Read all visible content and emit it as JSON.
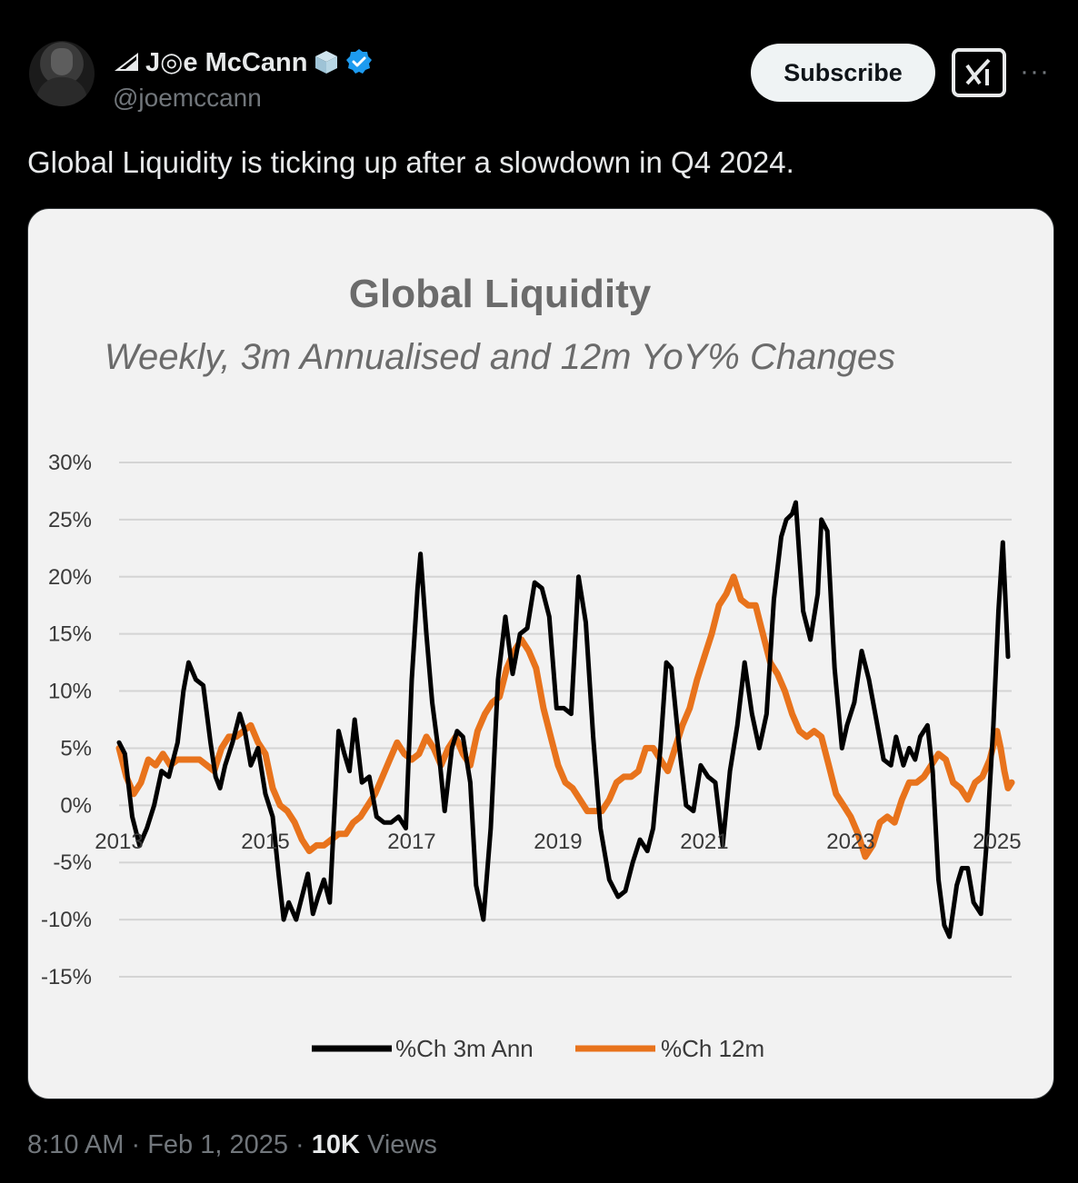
{
  "author": {
    "display_name": "J◎e McCann",
    "handle": "@joemccann",
    "verified": true,
    "icons": [
      "signal-icon",
      "cube-icon",
      "verified-icon",
      "avatar"
    ]
  },
  "header": {
    "subscribe_label": "Subscribe",
    "grok_icon": "grok-icon",
    "more_icon": "more-icon"
  },
  "tweet": {
    "text": "Global Liquidity is ticking up after a slowdown in Q4 2024."
  },
  "meta": {
    "time": "8:10 AM",
    "sep1": " · ",
    "date": "Feb 1, 2025",
    "sep2": " · ",
    "views_count": "10K",
    "views_label": " Views"
  },
  "colors": {
    "series_3m": "#000000",
    "series_12m": "#e8731c",
    "chart_bg": "#f2f2f2",
    "grid": "#d4d4d4"
  },
  "chart_data": {
    "type": "line",
    "title": "Global Liquidity",
    "subtitle": "Weekly, 3m Annualised and 12m YoY% Changes",
    "ylim": [
      -15,
      30
    ],
    "yticks": [
      30,
      25,
      20,
      15,
      10,
      5,
      0,
      -5,
      -10,
      -15
    ],
    "ytick_labels": [
      "30%",
      "25%",
      "20%",
      "15%",
      "10%",
      "5%",
      "0%",
      "-5%",
      "-10%",
      "-15%"
    ],
    "xlim": [
      2013,
      2025.2
    ],
    "xticks": [
      2013,
      2015,
      2017,
      2019,
      2021,
      2023,
      2025
    ],
    "xtick_labels": [
      "2013",
      "2015",
      "2017",
      "2019",
      "2021",
      "2023",
      "2025"
    ],
    "grid": true,
    "legend_position": "bottom",
    "series": [
      {
        "name": "%Ch 3m Ann",
        "color": "#000000",
        "points": [
          [
            2013.0,
            5.5
          ],
          [
            2013.08,
            4.5
          ],
          [
            2013.18,
            -1
          ],
          [
            2013.28,
            -3.5
          ],
          [
            2013.38,
            -2
          ],
          [
            2013.48,
            0
          ],
          [
            2013.58,
            3
          ],
          [
            2013.68,
            2.5
          ],
          [
            2013.8,
            5.5
          ],
          [
            2013.88,
            10
          ],
          [
            2013.95,
            12.5
          ],
          [
            2014.05,
            11
          ],
          [
            2014.15,
            10.5
          ],
          [
            2014.25,
            5.5
          ],
          [
            2014.32,
            2.5
          ],
          [
            2014.38,
            1.5
          ],
          [
            2014.45,
            3.5
          ],
          [
            2014.55,
            5.5
          ],
          [
            2014.65,
            8
          ],
          [
            2014.72,
            6.5
          ],
          [
            2014.8,
            3.5
          ],
          [
            2014.9,
            5
          ],
          [
            2015.0,
            1
          ],
          [
            2015.1,
            -1
          ],
          [
            2015.18,
            -6
          ],
          [
            2015.25,
            -10
          ],
          [
            2015.32,
            -8.5
          ],
          [
            2015.42,
            -10
          ],
          [
            2015.5,
            -8
          ],
          [
            2015.58,
            -6
          ],
          [
            2015.65,
            -9.5
          ],
          [
            2015.72,
            -8
          ],
          [
            2015.8,
            -6.5
          ],
          [
            2015.88,
            -8.5
          ],
          [
            2016.0,
            6.5
          ],
          [
            2016.08,
            4.5
          ],
          [
            2016.15,
            3
          ],
          [
            2016.22,
            7.5
          ],
          [
            2016.32,
            2
          ],
          [
            2016.42,
            2.5
          ],
          [
            2016.52,
            -1
          ],
          [
            2016.62,
            -1.5
          ],
          [
            2016.72,
            -1.5
          ],
          [
            2016.82,
            -1
          ],
          [
            2016.92,
            -2
          ],
          [
            2017.0,
            11
          ],
          [
            2017.08,
            19
          ],
          [
            2017.12,
            22
          ],
          [
            2017.2,
            15
          ],
          [
            2017.28,
            9
          ],
          [
            2017.38,
            4
          ],
          [
            2017.45,
            -0.5
          ],
          [
            2017.55,
            5
          ],
          [
            2017.62,
            6.5
          ],
          [
            2017.7,
            6
          ],
          [
            2017.8,
            2
          ],
          [
            2017.88,
            -7
          ],
          [
            2017.98,
            -10
          ],
          [
            2018.08,
            -2
          ],
          [
            2018.18,
            11
          ],
          [
            2018.28,
            16.5
          ],
          [
            2018.38,
            11.5
          ],
          [
            2018.48,
            15
          ],
          [
            2018.58,
            15.5
          ],
          [
            2018.68,
            19.5
          ],
          [
            2018.78,
            19
          ],
          [
            2018.88,
            16.5
          ],
          [
            2018.98,
            8.5
          ],
          [
            2019.08,
            8.5
          ],
          [
            2019.18,
            8
          ],
          [
            2019.28,
            20
          ],
          [
            2019.38,
            16
          ],
          [
            2019.48,
            6
          ],
          [
            2019.58,
            -2
          ],
          [
            2019.7,
            -6.5
          ],
          [
            2019.82,
            -8
          ],
          [
            2019.92,
            -7.5
          ],
          [
            2020.02,
            -5
          ],
          [
            2020.12,
            -3
          ],
          [
            2020.22,
            -4
          ],
          [
            2020.3,
            -2
          ],
          [
            2020.4,
            5
          ],
          [
            2020.48,
            12.5
          ],
          [
            2020.55,
            12
          ],
          [
            2020.65,
            5.5
          ],
          [
            2020.75,
            0
          ],
          [
            2020.85,
            -0.5
          ],
          [
            2020.95,
            3.5
          ],
          [
            2021.05,
            2.5
          ],
          [
            2021.15,
            2
          ],
          [
            2021.25,
            -3.5
          ],
          [
            2021.35,
            3
          ],
          [
            2021.45,
            7
          ],
          [
            2021.55,
            12.5
          ],
          [
            2021.65,
            8
          ],
          [
            2021.75,
            5
          ],
          [
            2021.85,
            8
          ],
          [
            2021.95,
            18
          ],
          [
            2022.05,
            23.5
          ],
          [
            2022.12,
            25
          ],
          [
            2022.2,
            25.5
          ],
          [
            2022.25,
            26.5
          ],
          [
            2022.35,
            17
          ],
          [
            2022.45,
            14.5
          ],
          [
            2022.55,
            18.5
          ],
          [
            2022.6,
            25
          ],
          [
            2022.68,
            24
          ],
          [
            2022.78,
            12
          ],
          [
            2022.88,
            5
          ],
          [
            2022.95,
            7
          ],
          [
            2023.05,
            9
          ],
          [
            2023.15,
            13.5
          ],
          [
            2023.25,
            11
          ],
          [
            2023.35,
            7.5
          ],
          [
            2023.45,
            4
          ],
          [
            2023.55,
            3.5
          ],
          [
            2023.62,
            6
          ],
          [
            2023.72,
            3.5
          ],
          [
            2023.8,
            5
          ],
          [
            2023.88,
            4
          ],
          [
            2023.95,
            6
          ],
          [
            2024.05,
            7
          ],
          [
            2024.12,
            3
          ],
          [
            2024.2,
            -6.5
          ],
          [
            2024.28,
            -10.5
          ],
          [
            2024.35,
            -11.5
          ],
          [
            2024.45,
            -7
          ],
          [
            2024.52,
            -5.5
          ],
          [
            2024.6,
            -5.5
          ],
          [
            2024.68,
            -8.5
          ],
          [
            2024.78,
            -9.5
          ],
          [
            2024.85,
            -4
          ],
          [
            2024.95,
            7
          ],
          [
            2025.02,
            17
          ],
          [
            2025.08,
            23
          ],
          [
            2025.15,
            13
          ]
        ]
      },
      {
        "name": "%Ch 12m",
        "color": "#e8731c",
        "points": [
          [
            2013.0,
            5
          ],
          [
            2013.1,
            2.5
          ],
          [
            2013.2,
            1
          ],
          [
            2013.3,
            2
          ],
          [
            2013.4,
            4
          ],
          [
            2013.5,
            3.5
          ],
          [
            2013.6,
            4.5
          ],
          [
            2013.7,
            3.5
          ],
          [
            2013.8,
            4
          ],
          [
            2013.95,
            4
          ],
          [
            2014.1,
            4
          ],
          [
            2014.2,
            3.5
          ],
          [
            2014.3,
            3
          ],
          [
            2014.4,
            5
          ],
          [
            2014.5,
            6
          ],
          [
            2014.6,
            6
          ],
          [
            2014.7,
            6.5
          ],
          [
            2014.8,
            7
          ],
          [
            2014.9,
            5.5
          ],
          [
            2015.0,
            4.5
          ],
          [
            2015.1,
            1.5
          ],
          [
            2015.2,
            0
          ],
          [
            2015.3,
            -0.5
          ],
          [
            2015.4,
            -1.5
          ],
          [
            2015.5,
            -3
          ],
          [
            2015.6,
            -4
          ],
          [
            2015.7,
            -3.5
          ],
          [
            2015.8,
            -3.5
          ],
          [
            2015.9,
            -3
          ],
          [
            2016.0,
            -2.5
          ],
          [
            2016.1,
            -2.5
          ],
          [
            2016.2,
            -1.5
          ],
          [
            2016.3,
            -1
          ],
          [
            2016.4,
            0
          ],
          [
            2016.5,
            1
          ],
          [
            2016.6,
            2.5
          ],
          [
            2016.7,
            4
          ],
          [
            2016.8,
            5.5
          ],
          [
            2016.9,
            4.5
          ],
          [
            2017.0,
            4
          ],
          [
            2017.1,
            4.5
          ],
          [
            2017.2,
            6
          ],
          [
            2017.3,
            5
          ],
          [
            2017.4,
            3.5
          ],
          [
            2017.5,
            5
          ],
          [
            2017.6,
            6
          ],
          [
            2017.7,
            4.5
          ],
          [
            2017.8,
            3.5
          ],
          [
            2017.9,
            6.5
          ],
          [
            2018.0,
            8
          ],
          [
            2018.1,
            9
          ],
          [
            2018.2,
            9.5
          ],
          [
            2018.3,
            12
          ],
          [
            2018.4,
            13.5
          ],
          [
            2018.5,
            14.5
          ],
          [
            2018.6,
            13.5
          ],
          [
            2018.7,
            12
          ],
          [
            2018.8,
            8.5
          ],
          [
            2018.9,
            6
          ],
          [
            2019.0,
            3.5
          ],
          [
            2019.1,
            2
          ],
          [
            2019.2,
            1.5
          ],
          [
            2019.3,
            0.5
          ],
          [
            2019.4,
            -0.5
          ],
          [
            2019.5,
            -0.5
          ],
          [
            2019.6,
            -0.5
          ],
          [
            2019.7,
            0.5
          ],
          [
            2019.8,
            2
          ],
          [
            2019.9,
            2.5
          ],
          [
            2020.0,
            2.5
          ],
          [
            2020.1,
            3
          ],
          [
            2020.2,
            5
          ],
          [
            2020.3,
            5
          ],
          [
            2020.4,
            4
          ],
          [
            2020.5,
            3
          ],
          [
            2020.6,
            5
          ],
          [
            2020.7,
            7
          ],
          [
            2020.8,
            8.5
          ],
          [
            2020.9,
            11
          ],
          [
            2021.0,
            13
          ],
          [
            2021.1,
            15
          ],
          [
            2021.2,
            17.5
          ],
          [
            2021.3,
            18.5
          ],
          [
            2021.4,
            20
          ],
          [
            2021.5,
            18
          ],
          [
            2021.6,
            17.5
          ],
          [
            2021.7,
            17.5
          ],
          [
            2021.8,
            15
          ],
          [
            2021.9,
            12.5
          ],
          [
            2022.0,
            11.5
          ],
          [
            2022.1,
            10
          ],
          [
            2022.2,
            8
          ],
          [
            2022.3,
            6.5
          ],
          [
            2022.4,
            6
          ],
          [
            2022.5,
            6.5
          ],
          [
            2022.6,
            6
          ],
          [
            2022.7,
            3.5
          ],
          [
            2022.8,
            1
          ],
          [
            2022.9,
            0
          ],
          [
            2023.0,
            -1
          ],
          [
            2023.1,
            -2.5
          ],
          [
            2023.2,
            -4.5
          ],
          [
            2023.3,
            -3.5
          ],
          [
            2023.4,
            -1.5
          ],
          [
            2023.5,
            -1
          ],
          [
            2023.6,
            -1.5
          ],
          [
            2023.7,
            0.5
          ],
          [
            2023.8,
            2
          ],
          [
            2023.9,
            2
          ],
          [
            2024.0,
            2.5
          ],
          [
            2024.1,
            3.5
          ],
          [
            2024.2,
            4.5
          ],
          [
            2024.3,
            4
          ],
          [
            2024.4,
            2
          ],
          [
            2024.5,
            1.5
          ],
          [
            2024.6,
            0.5
          ],
          [
            2024.7,
            2
          ],
          [
            2024.8,
            2.5
          ],
          [
            2024.9,
            4
          ],
          [
            2025.0,
            6.5
          ],
          [
            2025.05,
            5
          ],
          [
            2025.1,
            3
          ],
          [
            2025.15,
            1.5
          ],
          [
            2025.2,
            2
          ]
        ]
      }
    ]
  }
}
